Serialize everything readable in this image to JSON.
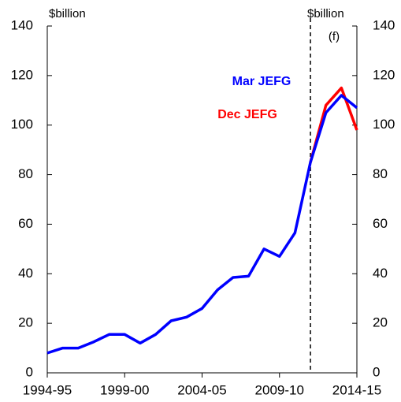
{
  "chart_data": {
    "type": "line",
    "y_label": "$billion",
    "y2_label": "$billion",
    "annotation": "(f)",
    "categories": [
      "1994-95",
      null,
      null,
      null,
      null,
      "1999-00",
      null,
      null,
      null,
      null,
      "2004-05",
      null,
      null,
      null,
      null,
      "2009-10",
      null,
      null,
      null,
      null,
      "2014-15"
    ],
    "series": [
      {
        "name": "Mar JEFG",
        "color": "#0000ff",
        "values": [
          8,
          10,
          10,
          12.5,
          15.5,
          15.5,
          12,
          15.5,
          21,
          22.5,
          26,
          33.5,
          38.5,
          39,
          50,
          47,
          56.5,
          85,
          105,
          112,
          107
        ]
      },
      {
        "name": "Dec JEFG",
        "color": "#ff0000",
        "values": [
          null,
          null,
          null,
          null,
          null,
          null,
          null,
          null,
          null,
          null,
          null,
          null,
          null,
          null,
          null,
          null,
          null,
          85,
          108,
          115,
          98
        ]
      }
    ],
    "ylim": [
      0,
      140
    ],
    "yticks": [
      0,
      20,
      40,
      60,
      80,
      100,
      120,
      140
    ],
    "y2lim": [
      0,
      140
    ],
    "y2ticks": [
      0,
      20,
      40,
      60,
      80,
      100,
      120,
      140
    ]
  }
}
